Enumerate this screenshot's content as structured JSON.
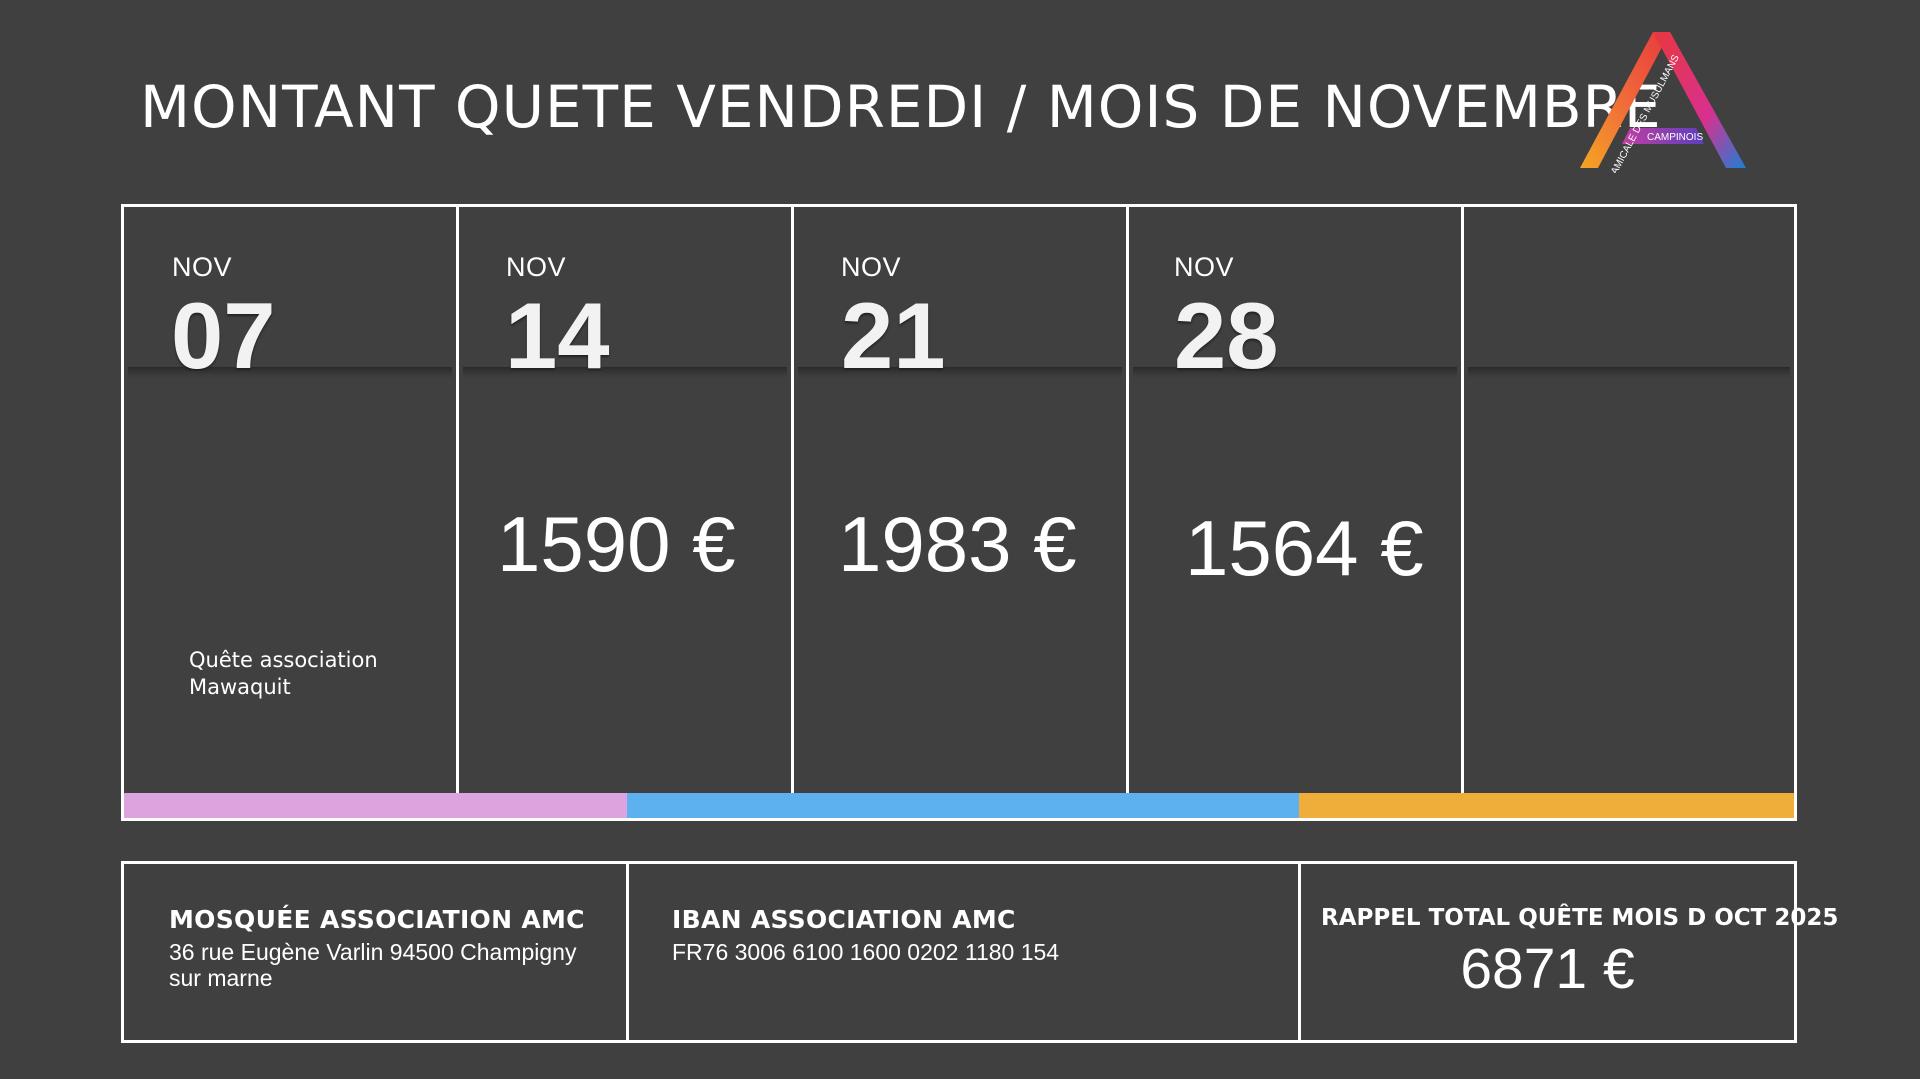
{
  "title": "MONTANT QUETE VENDREDI / MOIS DE NOVEMBRE",
  "logo": {
    "arc_text": "AMICALE DES MUSULMANS",
    "sub_text": "CAMPINOIS"
  },
  "calendar": {
    "columns": [
      {
        "month": "NOV",
        "day": "07",
        "amount": "",
        "note": "Quête association Mawaquit"
      },
      {
        "month": "NOV",
        "day": "14",
        "amount": "1590 €",
        "note": ""
      },
      {
        "month": "NOV",
        "day": "21",
        "amount": "1983 €",
        "note": ""
      },
      {
        "month": "NOV",
        "day": "28",
        "amount": "1564 €",
        "note": ""
      },
      {
        "month": "",
        "day": "",
        "amount": "",
        "note": ""
      }
    ],
    "bar_colors": [
      "#dca3df",
      "#5cb1ee",
      "#eeae39"
    ]
  },
  "info": {
    "mosque": {
      "title": "MOSQUÉE ASSOCIATION AMC",
      "address": "36 rue Eugène Varlin 94500 Champigny sur marne"
    },
    "iban": {
      "title": "IBAN ASSOCIATION AMC",
      "value": "FR76 3006 6100 1600 0202 1180 154"
    },
    "rappel": {
      "title": "RAPPEL TOTAL QUÊTE MOIS D OCT 2025",
      "value": "6871 €"
    }
  }
}
